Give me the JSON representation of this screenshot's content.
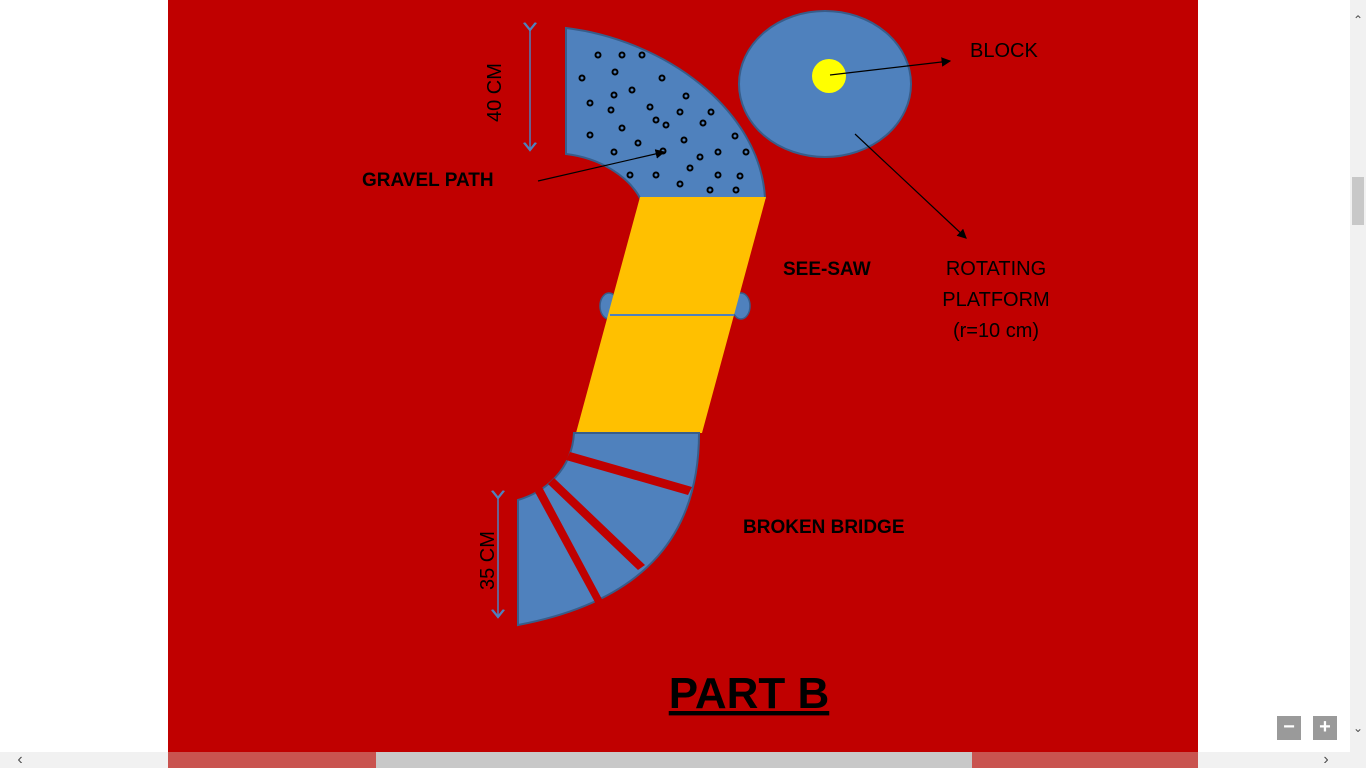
{
  "labels": {
    "block": "BLOCK",
    "gravel_path": "GRAVEL PATH",
    "see_saw": "SEE-SAW",
    "rotating_platform_line1": "ROTATING",
    "rotating_platform_line2": "PLATFORM",
    "rotating_platform_line3": "(r=10 cm)",
    "broken_bridge": "BROKEN BRIDGE",
    "dimension_top": "40 CM",
    "dimension_bottom": "35 CM",
    "part_title": "PART B"
  },
  "colors": {
    "background": "#c00000",
    "track_blue": "#4f81bd",
    "seesaw_gold": "#ffc000",
    "block_yellow": "#ffff00",
    "arrow": "#000000"
  },
  "controls": {
    "zoom_out": "−",
    "zoom_in": "+",
    "scroll_left": "‹",
    "scroll_right": "›",
    "scroll_up": "⌃",
    "scroll_down": "⌄"
  }
}
